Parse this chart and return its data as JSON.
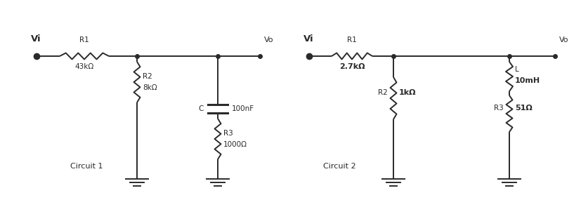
{
  "bg_color": "#ffffff",
  "line_color": "#2a2a2a",
  "text_color": "#2a2a2a",
  "circuit1": {
    "label": "Circuit 1",
    "Vi_label": "Vi",
    "Vo_label": "Vo",
    "R1_label": "R1",
    "R1_val": "43kΩ",
    "R2_label": "R2",
    "R2_val": "8kΩ",
    "R3_label": "R3",
    "R3_val": "1000Ω",
    "C_label": "C",
    "C_val": "100nF"
  },
  "circuit2": {
    "label": "Circuit 2",
    "Vi_label": "Vi",
    "Vo_label": "Vo",
    "R1_label": "R1",
    "R1_val": "2.7kΩ",
    "R2_label": "R2",
    "R2_val": "1kΩ",
    "R3_label": "R3",
    "R3_val": "51Ω",
    "L_label": "L",
    "L_val": "10mH"
  },
  "lw": 1.4,
  "font_size": 7.5,
  "font_size_vi": 9.5
}
